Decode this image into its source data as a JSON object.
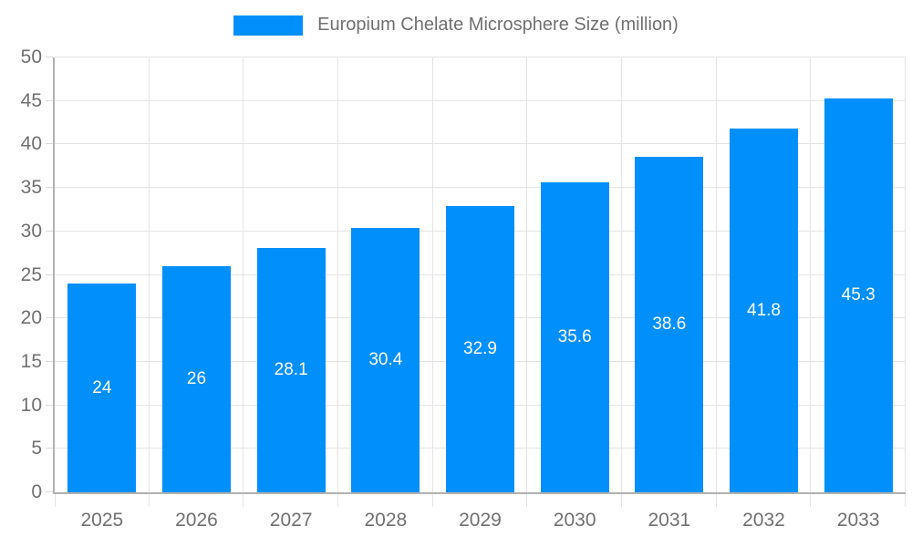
{
  "chart_data": {
    "type": "bar",
    "title": "Europium Chelate Microsphere Size (million)",
    "categories": [
      "2025",
      "2026",
      "2027",
      "2028",
      "2029",
      "2030",
      "2031",
      "2032",
      "2033"
    ],
    "series": [
      {
        "name": "Europium Chelate Microsphere Size (million)",
        "values": [
          24,
          26,
          28.1,
          30.4,
          32.9,
          35.6,
          38.6,
          41.8,
          45.3
        ]
      }
    ],
    "value_labels": [
      "24",
      "26",
      "28.1",
      "30.4",
      "32.9",
      "35.6",
      "38.6",
      "41.8",
      "45.3"
    ],
    "xlabel": "",
    "ylabel": "",
    "ylim": [
      0,
      50
    ],
    "ytick_step": 5,
    "ytick_labels": [
      "0",
      "5",
      "10",
      "15",
      "20",
      "25",
      "30",
      "35",
      "40",
      "45",
      "50"
    ],
    "grid": true,
    "legend_position": "top",
    "colors": {
      "bar": "#008FFB",
      "axis_label": "#707070",
      "data_label": "#ffffff",
      "grid_line": "#e4e4e4",
      "axis_line": "#b1b1b1",
      "tick": "#d9d9d9"
    }
  }
}
